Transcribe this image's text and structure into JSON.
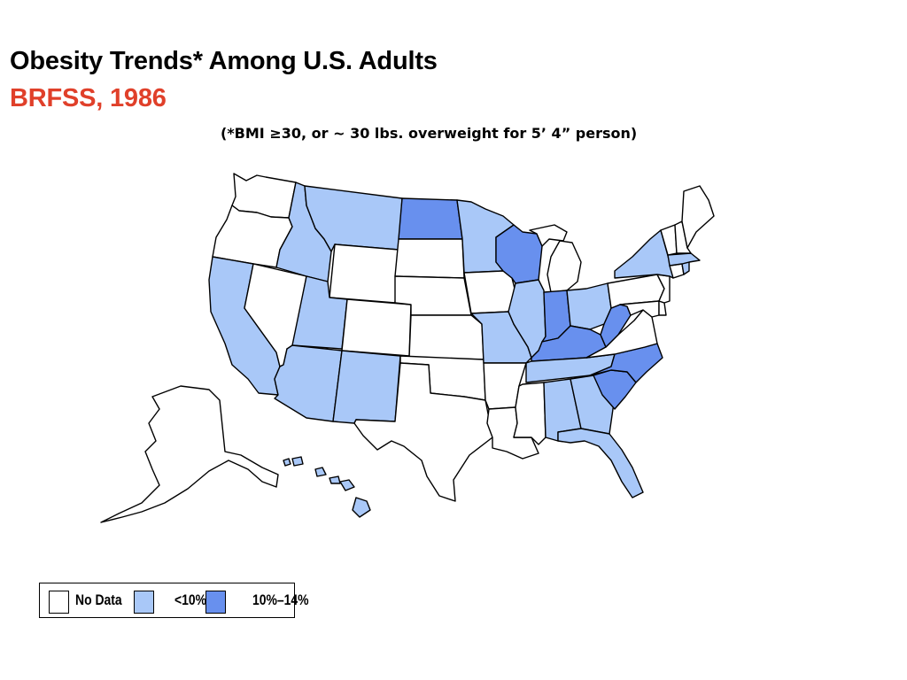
{
  "title": "Obesity Trends* Among U.S. Adults",
  "subtitle": "BRFSS, 1986",
  "note": "(*BMI ≥30, or ~ 30 lbs. overweight for 5’ 4” person)",
  "colors": {
    "title": "#000000",
    "subtitle": "#e0402a",
    "no_data": "#ffffff",
    "lt10": "#a9c8f8",
    "10to14": "#6890ee",
    "border": "#000000"
  },
  "legend": {
    "items": [
      {
        "label": "No Data",
        "category": "no_data"
      },
      {
        "label": "<10%",
        "category": "lt10"
      },
      {
        "label": "10%–14%",
        "category": "10to14"
      }
    ]
  },
  "states": {
    "WA": "no_data",
    "OR": "no_data",
    "CA": "lt10",
    "NV": "no_data",
    "ID": "lt10",
    "MT": "lt10",
    "WY": "no_data",
    "UT": "lt10",
    "AZ": "lt10",
    "CO": "no_data",
    "NM": "lt10",
    "ND": "10to14",
    "SD": "no_data",
    "NE": "no_data",
    "KS": "no_data",
    "OK": "no_data",
    "TX": "no_data",
    "MN": "lt10",
    "IA": "no_data",
    "MO": "lt10",
    "AR": "no_data",
    "LA": "no_data",
    "WI": "10to14",
    "IL": "lt10",
    "MI": "no_data",
    "IN": "10to14",
    "OH": "lt10",
    "KY": "10to14",
    "TN": "lt10",
    "MS": "no_data",
    "AL": "lt10",
    "GA": "lt10",
    "FL": "lt10",
    "SC": "10to14",
    "NC": "10to14",
    "VA": "no_data",
    "WV": "10to14",
    "MD": "no_data",
    "DE": "no_data",
    "PA": "no_data",
    "NJ": "no_data",
    "NY": "lt10",
    "CT": "no_data",
    "RI": "lt10",
    "MA": "lt10",
    "VT": "no_data",
    "NH": "no_data",
    "ME": "no_data",
    "AK": "no_data",
    "HI": "lt10"
  }
}
